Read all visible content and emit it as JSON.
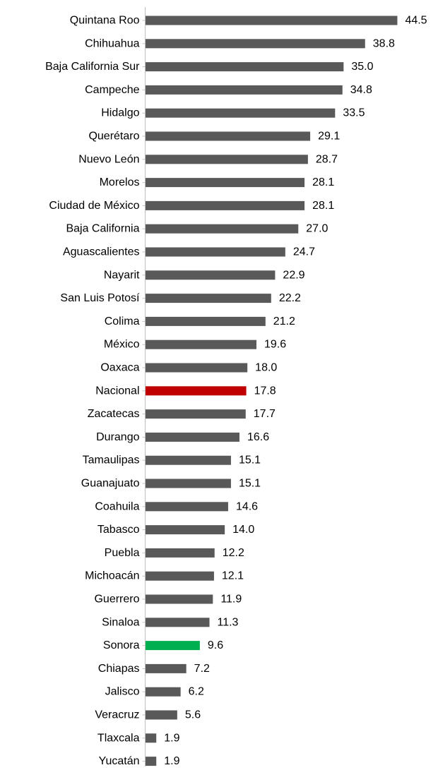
{
  "chart_data": {
    "type": "bar",
    "orientation": "horizontal",
    "categories": [
      "Quintana Roo",
      "Chihuahua",
      "Baja California Sur",
      "Campeche",
      "Hidalgo",
      "Querétaro",
      "Nuevo León",
      "Morelos",
      "Ciudad de México",
      "Baja California",
      "Aguascalientes",
      "Nayarit",
      "San Luis Potosí",
      "Colima",
      "México",
      "Oaxaca",
      "Nacional",
      "Zacatecas",
      "Durango",
      "Tamaulipas",
      "Guanajuato",
      "Coahuila",
      "Tabasco",
      "Puebla",
      "Michoacán",
      "Guerrero",
      "Sinaloa",
      "Sonora",
      "Chiapas",
      "Jalisco",
      "Veracruz",
      "Tlaxcala",
      "Yucatán"
    ],
    "values": [
      44.5,
      38.8,
      35.0,
      34.8,
      33.5,
      29.1,
      28.7,
      28.1,
      28.1,
      27.0,
      24.7,
      22.9,
      22.2,
      21.2,
      19.6,
      18.0,
      17.8,
      17.7,
      16.6,
      15.1,
      15.1,
      14.6,
      14.0,
      12.2,
      12.1,
      11.9,
      11.3,
      9.6,
      7.2,
      6.2,
      5.6,
      1.9,
      1.9
    ],
    "value_labels": [
      "44.5",
      "38.8",
      "35.0",
      "34.8",
      "33.5",
      "29.1",
      "28.7",
      "28.1",
      "28.1",
      "27.0",
      "24.7",
      "22.9",
      "22.2",
      "21.2",
      "19.6",
      "18.0",
      "17.8",
      "17.7",
      "16.6",
      "15.1",
      "15.1",
      "14.6",
      "14.0",
      "12.2",
      "12.1",
      "11.9",
      "11.3",
      "9.6",
      "7.2",
      "6.2",
      "5.6",
      "1.9",
      "1.9"
    ],
    "colors": {
      "default": "#595959",
      "highlights": {
        "Nacional": "#c00000",
        "Sonora": "#00b050"
      },
      "axis": "#bfbfbf",
      "text": "#000000"
    },
    "xlim": [
      0,
      50
    ],
    "grid": false,
    "legend": "none",
    "data_labels": true,
    "title": "",
    "xlabel": "",
    "ylabel": ""
  }
}
